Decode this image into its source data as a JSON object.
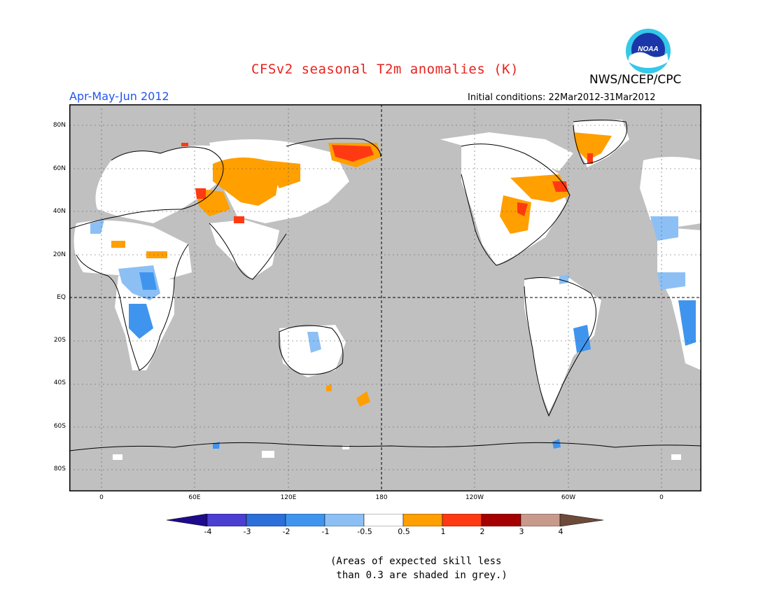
{
  "title": "CFSv2 seasonal T2m anomalies (K)",
  "agency": "NWS/NCEP/CPC",
  "logo_text": "NOAA",
  "period": "Apr-May-Jun 2012",
  "initial_conditions": "Initial conditions: 22Mar2012-31Mar2012",
  "lat_labels": [
    "80N",
    "60N",
    "40N",
    "20N",
    "EQ",
    "20S",
    "40S",
    "60S",
    "80S"
  ],
  "lon_labels": [
    "0",
    "60E",
    "120E",
    "180",
    "120W",
    "60W",
    "0"
  ],
  "colorbar": {
    "labels": [
      "-4",
      "-3",
      "-2",
      "-1",
      "-0.5",
      "0.5",
      "1",
      "2",
      "3",
      "4"
    ],
    "colors": [
      "#1e0a8c",
      "#4a3fd0",
      "#2c6fd8",
      "#3f95ee",
      "#8cc0f5",
      "#ffffff",
      "#ff9f00",
      "#ff3a12",
      "#a50000",
      "#c89a8c",
      "#6e4a3a"
    ]
  },
  "note_line1": "(Areas of expected skill less",
  "note_line2": " than 0.3 are shaded in grey.)",
  "colors": {
    "grey_low_skill": "#c0c0c0",
    "no_anomaly": "#ffffff",
    "warm_1": "#ff9f00",
    "warm_2": "#ff3a12",
    "cool_1": "#3f95ee",
    "cool_2": "#8cc0f5"
  }
}
